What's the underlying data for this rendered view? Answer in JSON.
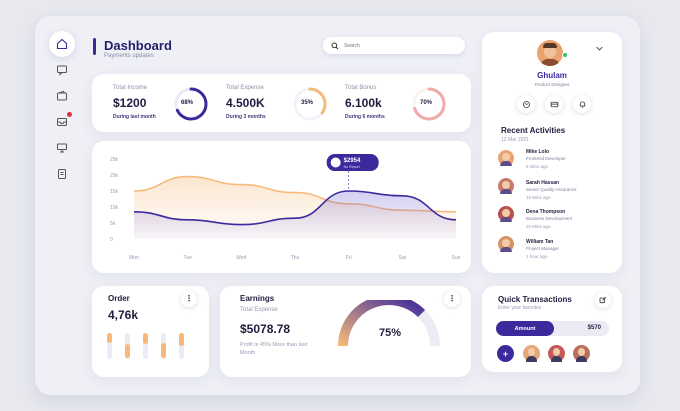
{
  "header": {
    "title": "Dashboard",
    "subtitle": "Payments updates"
  },
  "search": {
    "placeholder": "Search",
    "icon": "search-icon"
  },
  "sidebar": {
    "items": [
      {
        "name": "home",
        "icon": "home-icon",
        "active": true
      },
      {
        "name": "messages",
        "icon": "chat-icon"
      },
      {
        "name": "wallet",
        "icon": "wallet-icon"
      },
      {
        "name": "notifications",
        "icon": "inbox-icon",
        "badge": true
      },
      {
        "name": "reports",
        "icon": "presentation-icon"
      },
      {
        "name": "documents",
        "icon": "document-icon"
      }
    ]
  },
  "stats": [
    {
      "label": "Total Income",
      "value": "$1200",
      "note": "During last month",
      "percent": 68,
      "percent_label": "68%",
      "color": "#3b2a9c"
    },
    {
      "label": "Total Expense",
      "value": "4.500K",
      "note": "During 3 months",
      "percent": 35,
      "percent_label": "35%",
      "color": "#f6b97a"
    },
    {
      "label": "Total Bonus",
      "value": "6.100k",
      "note": "During 6 months",
      "percent": 70,
      "percent_label": "70%",
      "color": "#f2a9a9"
    }
  ],
  "chart_data": {
    "type": "area",
    "categories": [
      "Mon",
      "Tue",
      "Wed",
      "Thu",
      "Fri",
      "Sat",
      "Sun"
    ],
    "y_ticks": [
      "0",
      "5k",
      "10k",
      "15k",
      "20k",
      "25k"
    ],
    "ylim": [
      0,
      25000
    ],
    "series": [
      {
        "values": [
          15000,
          19500,
          17000,
          14500,
          11000,
          9000,
          8500
        ],
        "color": "#f6b97a"
      },
      {
        "values": [
          8500,
          6000,
          4500,
          6500,
          15000,
          13500,
          6000
        ],
        "color": "#3b2a9c"
      }
    ],
    "tooltip": {
      "value": "$2954",
      "sub": "No Report",
      "category": "Fri"
    }
  },
  "order": {
    "title": "Order",
    "value": "4,76k",
    "more": "⋮",
    "bars": [
      {
        "total": 0.85,
        "fill": 0.4,
        "color": "#f6b97a"
      },
      {
        "total": 0.85,
        "fill": 0.55,
        "color": "#f6b97a"
      },
      {
        "total": 0.85,
        "fill": 0.45,
        "color": "#f6b97a"
      },
      {
        "total": 0.85,
        "fill": 0.6,
        "color": "#f6b97a"
      },
      {
        "total": 0.85,
        "fill": 0.5,
        "color": "#f6b97a"
      }
    ]
  },
  "earnings": {
    "title": "Earnings",
    "label": "Total Expense",
    "value": "$5078.78",
    "note": "Profit is 45% More than last Month",
    "percent_label": "75%",
    "percent": 75,
    "more": "⋮"
  },
  "profile": {
    "name": "Ghulam",
    "role": "Product Designer",
    "online_color": "#34c759"
  },
  "activities": {
    "title": "Recent Activities",
    "date": "12 Mar 2021",
    "items": [
      {
        "name": "Mike Lolo",
        "role": "Frontend Developer",
        "time": "5 Mins ago",
        "avatar_color": "#e9a36f"
      },
      {
        "name": "Sarah Hassan",
        "role": "Senior Quality Assurance",
        "time": "15 Mins ago",
        "avatar_color": "#c77a6a"
      },
      {
        "name": "Dena Thompson",
        "role": "Business Development",
        "time": "20 Mins ago",
        "avatar_color": "#b85050"
      },
      {
        "name": "William Tan",
        "role": "Project Manager",
        "time": "1 hour ago",
        "avatar_color": "#d59466"
      }
    ]
  },
  "transactions": {
    "title": "Quick Transactions",
    "subtitle": "Enter your favorites",
    "amount_label": "Amount",
    "amount_value": "$570",
    "add_label": "+",
    "contacts": [
      "#e6a777",
      "#c65a5a",
      "#b8705f"
    ]
  }
}
